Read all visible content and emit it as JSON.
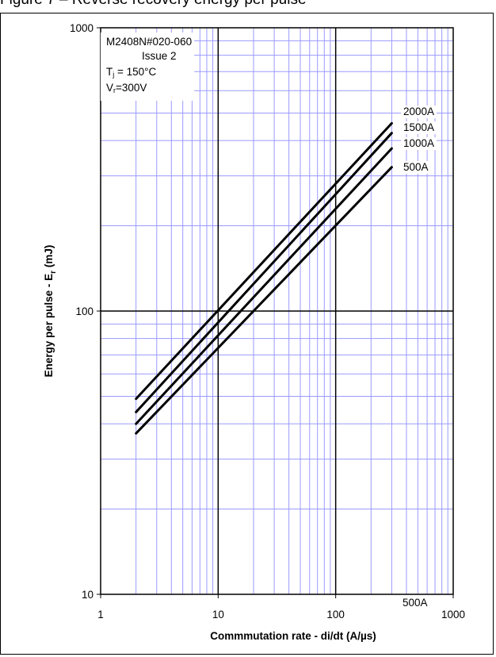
{
  "caption": "Figure 7 – Reverse recovery energy per pulse",
  "annotation": {
    "line1": "M2408N#020-060",
    "line2": "Issue 2",
    "tj_symbol": "T",
    "tj_sub": "j",
    "tj_value": " = 150°C",
    "vr_symbol": "V",
    "vr_sub": "r",
    "vr_value": "=300V"
  },
  "bottom_note": "500A",
  "chart_data": {
    "type": "line",
    "xlabel": "Commmutation rate - di/dt (A/µs)",
    "ylabel_main": "Energy per pulse - E",
    "ylabel_sub": "r",
    "ylabel_unit": " (mJ)",
    "xscale": "log",
    "yscale": "log",
    "xlim": [
      1,
      1000
    ],
    "ylim": [
      10,
      1000
    ],
    "x_ticks": [
      "1",
      "10",
      "100",
      "1000"
    ],
    "y_ticks": [
      "10",
      "100",
      "1000"
    ],
    "grid": true,
    "series": [
      {
        "name": "2000A",
        "x": [
          2,
          300
        ],
        "y": [
          49,
          460
        ]
      },
      {
        "name": "1500A",
        "x": [
          2,
          300
        ],
        "y": [
          44,
          425
        ]
      },
      {
        "name": "1000A",
        "x": [
          2,
          300
        ],
        "y": [
          40,
          375
        ]
      },
      {
        "name": "500A",
        "x": [
          2,
          300
        ],
        "y": [
          37,
          322
        ]
      }
    ]
  },
  "colors": {
    "grid_minor": "#9a9aff",
    "grid_major": "#000000",
    "curve": "#000000"
  }
}
